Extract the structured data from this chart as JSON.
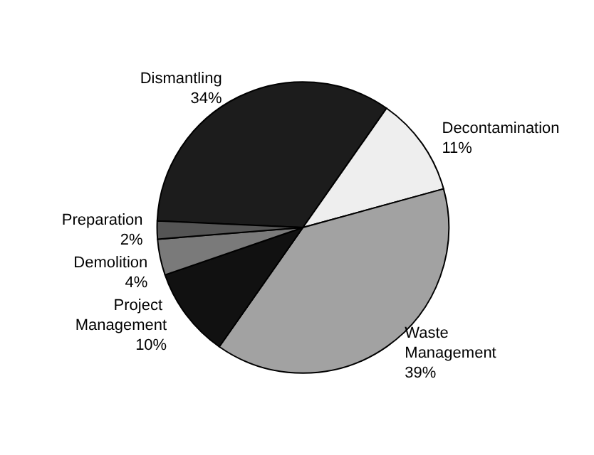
{
  "chart_data": {
    "type": "pie",
    "categories": [
      "Dismantling",
      "Decontamination",
      "Waste Management",
      "Project Management",
      "Demolition",
      "Preparation"
    ],
    "values": [
      34,
      11,
      39,
      10,
      4,
      2
    ],
    "value_labels": [
      "34%",
      "11%",
      "39%",
      "10%",
      "4%",
      "2%"
    ],
    "colors": [
      "#1c1c1c",
      "#eeeeee",
      "#a2a2a2",
      "#111111",
      "#7a7a7a",
      "#555555"
    ]
  }
}
